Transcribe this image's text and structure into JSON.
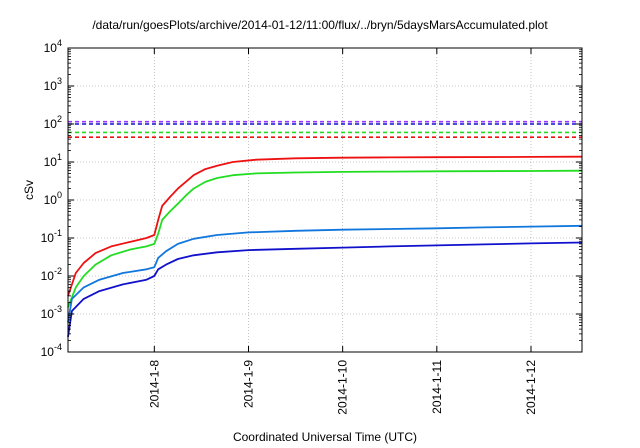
{
  "chart_data": {
    "type": "line",
    "title": "/data/run/goesPlots/archive/2014-01-12/11:00/flux/../bryn/5daysMarsAccumulated.plot",
    "xlabel": "Coordinated Universal Time (UTC)",
    "ylabel": "cSv",
    "y_scale": "log",
    "ylim": [
      0.0001,
      10000
    ],
    "xlim": [
      "2014-01-07 02:00",
      "2014-01-12 13:00"
    ],
    "grid": true,
    "x_ticks": [
      "2014-1-8",
      "2014-1-9",
      "2014-1-10",
      "2014-1-11",
      "2014-1-12"
    ],
    "y_ticks": [
      {
        "base": "10",
        "exp": "-4"
      },
      {
        "base": "10",
        "exp": "-3"
      },
      {
        "base": "10",
        "exp": "-2"
      },
      {
        "base": "10",
        "exp": "-1"
      },
      {
        "base": "10",
        "exp": "0"
      },
      {
        "base": "10",
        "exp": "1"
      },
      {
        "base": "10",
        "exp": "2"
      },
      {
        "base": "10",
        "exp": "3"
      },
      {
        "base": "10",
        "exp": "4"
      }
    ],
    "series": [
      {
        "color": "#ee1111",
        "x": [
          "2014-01-07 02:00",
          "2014-01-07 04:00",
          "2014-01-07 06:00",
          "2014-01-07 09:00",
          "2014-01-07 13:00",
          "2014-01-07 18:00",
          "2014-01-07 22:00",
          "2014-01-08 00:00",
          "2014-01-08 01:00",
          "2014-01-08 02:00",
          "2014-01-08 04:00",
          "2014-01-08 06:00",
          "2014-01-08 08:00",
          "2014-01-08 10:00",
          "2014-01-08 13:00",
          "2014-01-08 16:00",
          "2014-01-08 20:00",
          "2014-01-09 02:00",
          "2014-01-09 12:00",
          "2014-01-10 00:00",
          "2014-01-10 12:00",
          "2014-01-11 00:00",
          "2014-01-12 00:00",
          "2014-01-12 13:00"
        ],
        "y": [
          0.003,
          0.012,
          0.022,
          0.04,
          0.06,
          0.08,
          0.1,
          0.12,
          0.3,
          0.7,
          1.2,
          2.0,
          3.0,
          4.5,
          6.5,
          8.0,
          10.0,
          11.5,
          12.5,
          13.0,
          13.2,
          13.4,
          13.6,
          13.8
        ]
      },
      {
        "color": "#22dd22",
        "x": [
          "2014-01-07 02:00",
          "2014-01-07 04:00",
          "2014-01-07 06:00",
          "2014-01-07 09:00",
          "2014-01-07 13:00",
          "2014-01-07 18:00",
          "2014-01-07 22:00",
          "2014-01-08 00:00",
          "2014-01-08 01:00",
          "2014-01-08 02:00",
          "2014-01-08 04:00",
          "2014-01-08 06:00",
          "2014-01-08 08:00",
          "2014-01-08 10:00",
          "2014-01-08 13:00",
          "2014-01-08 16:00",
          "2014-01-08 20:00",
          "2014-01-09 02:00",
          "2014-01-09 12:00",
          "2014-01-10 00:00",
          "2014-01-10 12:00",
          "2014-01-11 00:00",
          "2014-01-12 00:00",
          "2014-01-12 13:00"
        ],
        "y": [
          0.0015,
          0.005,
          0.01,
          0.02,
          0.035,
          0.05,
          0.06,
          0.07,
          0.13,
          0.3,
          0.5,
          0.8,
          1.3,
          2.0,
          3.0,
          3.8,
          4.5,
          5.0,
          5.3,
          5.5,
          5.6,
          5.7,
          5.8,
          5.9
        ]
      },
      {
        "color": "#1177dd",
        "x": [
          "2014-01-07 02:00",
          "2014-01-07 03:00",
          "2014-01-07 06:00",
          "2014-01-07 10:00",
          "2014-01-07 16:00",
          "2014-01-07 22:00",
          "2014-01-08 00:00",
          "2014-01-08 01:00",
          "2014-01-08 03:00",
          "2014-01-08 06:00",
          "2014-01-08 10:00",
          "2014-01-08 16:00",
          "2014-01-09 00:00",
          "2014-01-09 12:00",
          "2014-01-10 00:00",
          "2014-01-10 12:00",
          "2014-01-11 00:00",
          "2014-01-11 12:00",
          "2014-01-12 00:00",
          "2014-01-12 13:00"
        ],
        "y": [
          0.0006,
          0.0025,
          0.005,
          0.008,
          0.012,
          0.015,
          0.017,
          0.03,
          0.045,
          0.07,
          0.095,
          0.12,
          0.14,
          0.155,
          0.165,
          0.172,
          0.18,
          0.19,
          0.2,
          0.21
        ]
      },
      {
        "color": "#1111cc",
        "x": [
          "2014-01-07 02:00",
          "2014-01-07 03:00",
          "2014-01-07 06:00",
          "2014-01-07 10:00",
          "2014-01-07 16:00",
          "2014-01-07 22:00",
          "2014-01-08 00:00",
          "2014-01-08 01:00",
          "2014-01-08 03:00",
          "2014-01-08 06:00",
          "2014-01-08 10:00",
          "2014-01-08 16:00",
          "2014-01-09 00:00",
          "2014-01-09 12:00",
          "2014-01-10 00:00",
          "2014-01-10 12:00",
          "2014-01-11 00:00",
          "2014-01-11 12:00",
          "2014-01-12 00:00",
          "2014-01-12 13:00"
        ],
        "y": [
          0.00025,
          0.0012,
          0.0025,
          0.004,
          0.006,
          0.008,
          0.01,
          0.015,
          0.02,
          0.028,
          0.035,
          0.042,
          0.048,
          0.052,
          0.056,
          0.06,
          0.064,
          0.068,
          0.072,
          0.076
        ]
      }
    ],
    "thresholds": [
      {
        "color": "#9933ff",
        "value": 115
      },
      {
        "color": "#1111cc",
        "value": 100
      },
      {
        "color": "#22dd22",
        "value": 60
      },
      {
        "color": "#ee1111",
        "value": 45
      }
    ]
  }
}
